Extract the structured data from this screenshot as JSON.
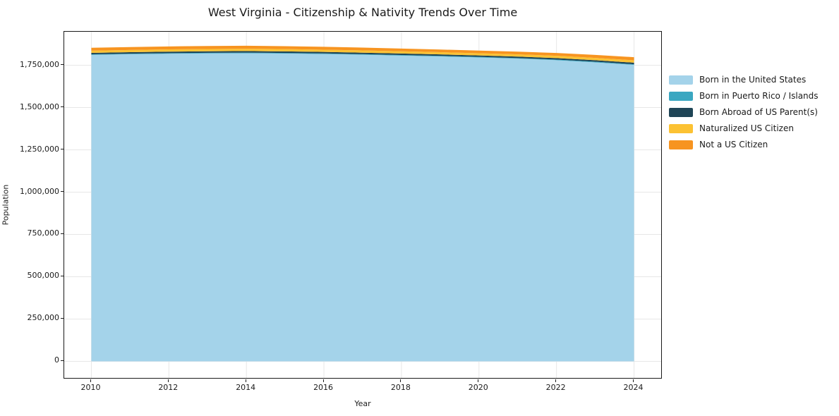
{
  "title": "West Virginia - Citizenship & Nativity Trends Over Time",
  "chart_data": {
    "type": "area",
    "stacked": true,
    "title": "West Virginia - Citizenship & Nativity Trends Over Time",
    "xlabel": "Year",
    "ylabel": "Population",
    "grid": true,
    "grid_color": "#e7e7e7",
    "legend_position": "right-outside",
    "x": [
      2010,
      2011,
      2012,
      2013,
      2014,
      2015,
      2016,
      2017,
      2018,
      2019,
      2020,
      2021,
      2022,
      2023,
      2024
    ],
    "series": [
      {
        "name": "Born in the United States",
        "color": "#a4d3ea",
        "values": [
          1811000,
          1815000,
          1818000,
          1820000,
          1821000,
          1819000,
          1816000,
          1812000,
          1807000,
          1802000,
          1796000,
          1789000,
          1780000,
          1767000,
          1752000
        ]
      },
      {
        "name": "Born in Puerto Rico / Islands",
        "color": "#3aa7c1",
        "values": [
          3500,
          3500,
          3600,
          3600,
          3700,
          3600,
          3600,
          3500,
          3500,
          3400,
          3400,
          3500,
          3600,
          3700,
          3800
        ]
      },
      {
        "name": "Born Abroad of US Parent(s)",
        "color": "#1f4556",
        "values": [
          8500,
          8600,
          8700,
          8900,
          9000,
          9000,
          8900,
          8800,
          8700,
          8600,
          8500,
          8600,
          8800,
          9000,
          9200
        ]
      },
      {
        "name": "Naturalized US Citizen",
        "color": "#fcc233",
        "values": [
          13000,
          13200,
          13400,
          13600,
          13800,
          13700,
          13500,
          13300,
          13100,
          13000,
          12900,
          13100,
          13400,
          13800,
          14200
        ]
      },
      {
        "name": "Not a US Citizen",
        "color": "#f79420",
        "values": [
          17000,
          17200,
          17400,
          17600,
          17800,
          17500,
          17000,
          16500,
          16000,
          15800,
          15600,
          16000,
          16800,
          17600,
          18400
        ]
      }
    ],
    "x_ticks": [
      2010,
      2012,
      2014,
      2016,
      2018,
      2020,
      2022,
      2024
    ],
    "x_tick_labels": [
      "2010",
      "2012",
      "2014",
      "2016",
      "2018",
      "2020",
      "2022",
      "2024"
    ],
    "y_ticks": [
      0,
      250000,
      500000,
      750000,
      1000000,
      1250000,
      1500000,
      1750000
    ],
    "y_tick_labels": [
      "0",
      "250,000",
      "500,000",
      "750,000",
      "1,000,000",
      "1,250,000",
      "1,500,000",
      "1,750,000"
    ],
    "xlim": [
      2009.3,
      2024.7
    ],
    "ylim": [
      -98000,
      1948000
    ]
  }
}
